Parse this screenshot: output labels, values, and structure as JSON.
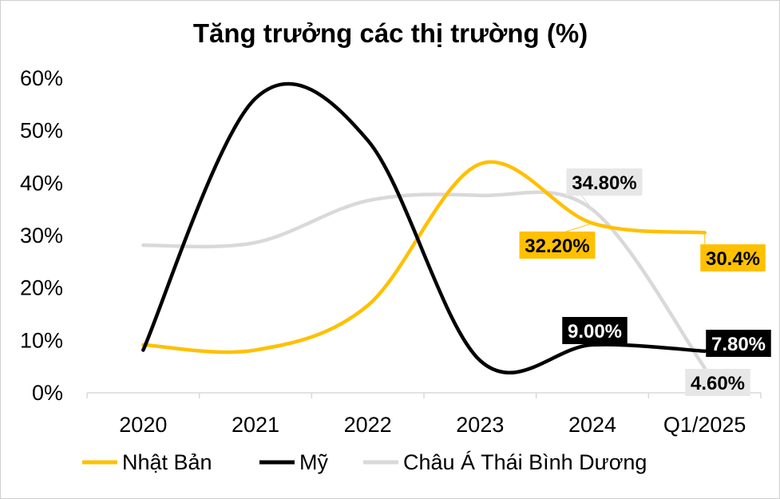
{
  "chart_data": {
    "type": "line",
    "title": "Tăng trưởng các thị trường (%)",
    "categories": [
      "2020",
      "2021",
      "2022",
      "2023",
      "2024",
      "Q1/2025"
    ],
    "ylim": [
      0,
      60
    ],
    "yticks": [
      "0%",
      "10%",
      "20%",
      "30%",
      "40%",
      "50%",
      "60%"
    ],
    "grid": false,
    "smooth": true,
    "legend_position": "bottom",
    "series": [
      {
        "name": "Nhật Bản",
        "color": "#FFC000",
        "values": [
          9.0,
          8.0,
          16.5,
          43.5,
          32.2,
          30.4
        ],
        "labels": [
          null,
          null,
          null,
          null,
          "32.20%",
          "30.4%"
        ]
      },
      {
        "name": "Mỹ",
        "color": "#000000",
        "values": [
          8.0,
          56.0,
          48.0,
          6.0,
          9.0,
          7.8
        ],
        "labels": [
          null,
          null,
          null,
          null,
          "9.00%",
          "7.80%"
        ]
      },
      {
        "name": "Châu Á Thái Bình Dương",
        "color": "#D9D9D9",
        "values": [
          28.0,
          28.5,
          36.5,
          37.5,
          34.8,
          4.6
        ],
        "labels": [
          null,
          null,
          null,
          null,
          "34.80%",
          "4.60%"
        ]
      }
    ]
  }
}
